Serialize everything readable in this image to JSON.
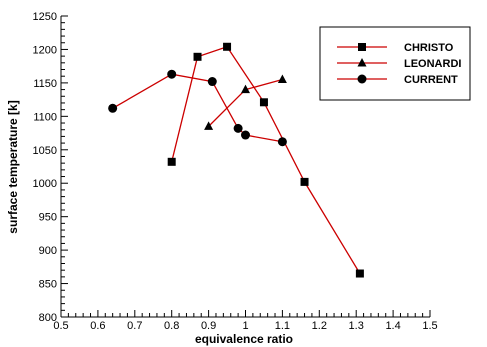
{
  "chart_data": {
    "type": "line",
    "title": "",
    "xlabel": "equivalence ratio",
    "ylabel": "surface temperature [k]",
    "xlim": [
      0.5,
      1.5
    ],
    "ylim": [
      800,
      1250
    ],
    "xticks": [
      0.5,
      0.6,
      0.7,
      0.8,
      0.9,
      1.0,
      1.1,
      1.2,
      1.3,
      1.4,
      1.5
    ],
    "xtick_labels": [
      "0.5",
      "0.6",
      "0.7",
      "0.8",
      "0.9",
      "1",
      "1.1",
      "1.2",
      "1.3",
      "1.4",
      "1.5"
    ],
    "yticks": [
      800,
      850,
      900,
      950,
      1000,
      1050,
      1100,
      1150,
      1200,
      1250
    ],
    "ytick_labels": [
      "800",
      "850",
      "900",
      "950",
      "1000",
      "1050",
      "1100",
      "1150",
      "1200",
      "1250"
    ],
    "grid": false,
    "legend_position": "top-right",
    "series_color": "#cc0000",
    "series": [
      {
        "name": "CHRISTO",
        "marker": "square",
        "x": [
          0.8,
          0.87,
          0.95,
          1.05,
          1.16,
          1.31
        ],
        "y": [
          1032,
          1189,
          1204,
          1121,
          1002,
          865
        ]
      },
      {
        "name": "LEONARDI",
        "marker": "triangle",
        "x": [
          0.9,
          1.0,
          1.1
        ],
        "y": [
          1085,
          1140,
          1155
        ]
      },
      {
        "name": "CURRENT",
        "marker": "circle",
        "x": [
          0.64,
          0.8,
          0.91,
          0.98,
          1.0,
          1.1
        ],
        "y": [
          1112,
          1163,
          1152,
          1082,
          1072,
          1062
        ]
      }
    ]
  }
}
